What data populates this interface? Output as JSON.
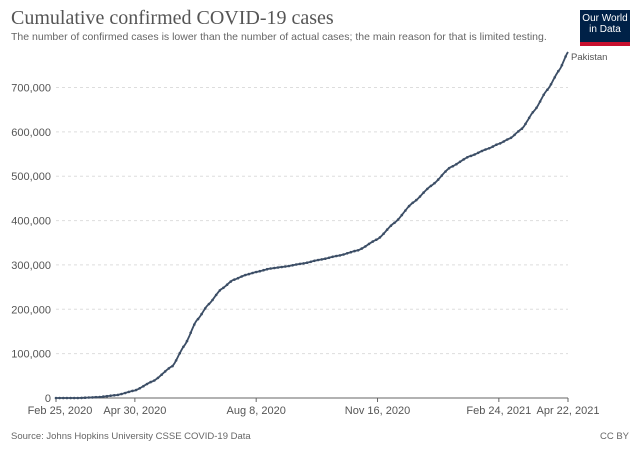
{
  "header": {
    "title": "Cumulative confirmed COVID-19 cases",
    "subtitle": "The number of confirmed cases is lower than the number of actual cases; the main reason for that is limited testing."
  },
  "logo": {
    "line1": "Our World",
    "line2": "in Data"
  },
  "footer": {
    "source": "Source: Johns Hopkins University CSSE COVID-19 Data",
    "license": "CC BY"
  },
  "colors": {
    "series": "#3c4e66",
    "grid": "#dddddd",
    "axis": "#666666",
    "logo_bg": "#002147",
    "logo_accent": "#c8102e"
  },
  "chart_data": {
    "type": "line",
    "title": "Cumulative confirmed COVID-19 cases",
    "xlabel": "",
    "ylabel": "",
    "xlim": [
      "2020-02-25",
      "2021-04-22"
    ],
    "ylim": [
      0,
      780000
    ],
    "grid": true,
    "y_ticks": [
      0,
      100000,
      200000,
      300000,
      400000,
      500000,
      600000,
      700000
    ],
    "y_tick_labels": [
      "0",
      "100,000",
      "200,000",
      "300,000",
      "400,000",
      "500,000",
      "600,000",
      "700,000"
    ],
    "x_ticks": [
      "2020-02-25",
      "2020-04-30",
      "2020-08-08",
      "2020-11-16",
      "2021-02-24",
      "2021-04-22"
    ],
    "x_tick_labels": [
      "Feb 25, 2020",
      "Apr 30, 2020",
      "Aug 8, 2020",
      "Nov 16, 2020",
      "Feb 24, 2021",
      "Apr 22, 2021"
    ],
    "series": [
      {
        "name": "Pakistan",
        "x": [
          "2020-02-25",
          "2020-03-15",
          "2020-03-31",
          "2020-04-15",
          "2020-04-30",
          "2020-05-15",
          "2020-05-31",
          "2020-06-10",
          "2020-06-20",
          "2020-06-30",
          "2020-07-10",
          "2020-07-20",
          "2020-07-31",
          "2020-08-08",
          "2020-08-20",
          "2020-08-31",
          "2020-09-15",
          "2020-09-30",
          "2020-10-15",
          "2020-10-31",
          "2020-11-16",
          "2020-11-30",
          "2020-12-15",
          "2020-12-31",
          "2021-01-15",
          "2021-01-31",
          "2021-02-15",
          "2021-02-24",
          "2021-03-05",
          "2021-03-15",
          "2021-03-25",
          "2021-04-05",
          "2021-04-15",
          "2021-04-22"
        ],
        "y": [
          0,
          50,
          2000,
          6500,
          17000,
          38000,
          72000,
          119000,
          175000,
          212000,
          245000,
          266000,
          278000,
          284000,
          292000,
          296000,
          303000,
          312000,
          321000,
          333000,
          358000,
          395000,
          440000,
          480000,
          520000,
          545000,
          562000,
          573000,
          585000,
          607000,
          647000,
          695000,
          740000,
          780000
        ]
      }
    ]
  }
}
